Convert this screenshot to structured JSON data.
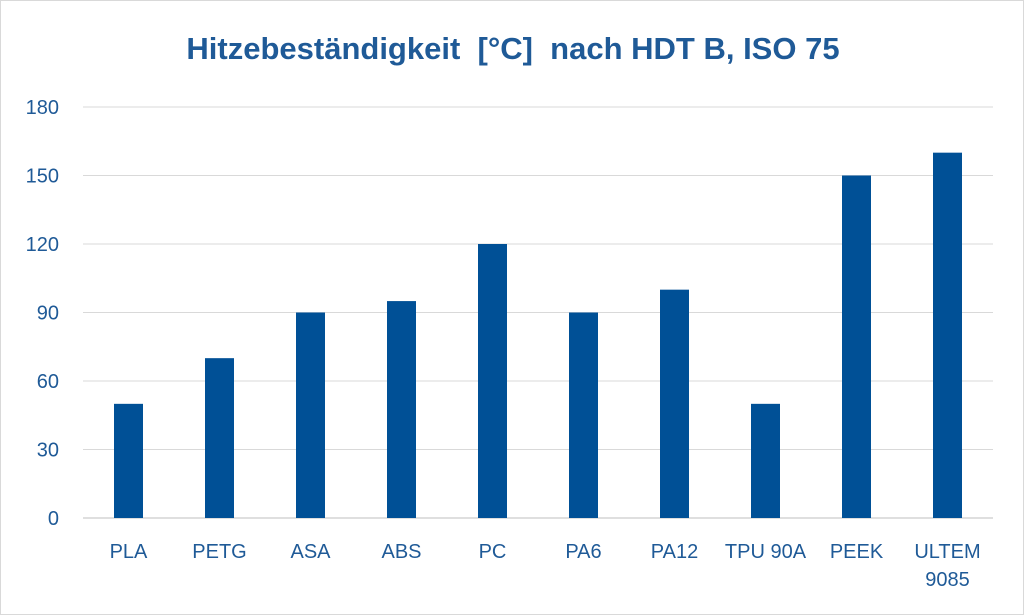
{
  "chart_data": {
    "type": "bar",
    "title": "Hitzebeständigkeit  [°C]  nach HDT B, ISO 75",
    "xlabel": "",
    "ylabel": "",
    "categories": [
      [
        "PLA"
      ],
      [
        "PETG"
      ],
      [
        "ASA"
      ],
      [
        "ABS"
      ],
      [
        "PC"
      ],
      [
        "PA6"
      ],
      [
        "PA12"
      ],
      [
        "TPU 90A"
      ],
      [
        "PEEK"
      ],
      [
        "ULTEM",
        "9085"
      ]
    ],
    "values": [
      50,
      70,
      90,
      95,
      120,
      90,
      100,
      50,
      150,
      160
    ],
    "ylim": [
      0,
      180
    ],
    "yticks": [
      0,
      30,
      60,
      90,
      120,
      150,
      180
    ],
    "grid": true,
    "legend": "none",
    "bar_color": "#005096",
    "text_color": "#1f5a97"
  }
}
